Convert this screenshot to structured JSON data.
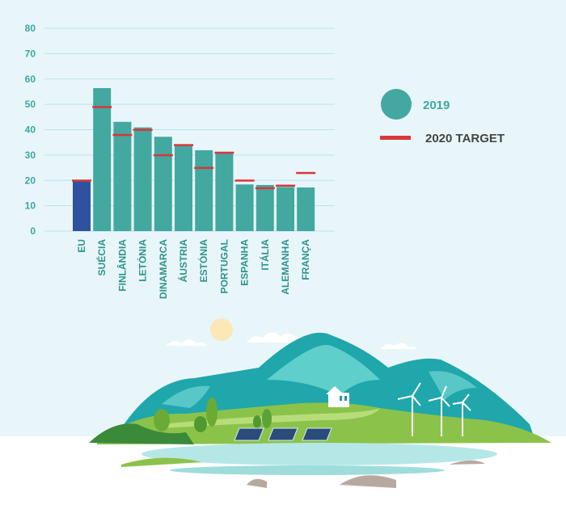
{
  "colors": {
    "bar": "#43a89f",
    "eu_bar": "#2f529e",
    "target": "#d9363a",
    "grid": "#b9e2ee",
    "tick_text": "#3ea79c",
    "legend_2019_text": "#3fa7a0",
    "legend_target_text": "#444444"
  },
  "legend": {
    "series_2019": "2019",
    "series_target": "2020 TARGET"
  },
  "chart_data": {
    "type": "bar",
    "title": "",
    "xlabel": "",
    "ylabel": "",
    "ylim": [
      0,
      80
    ],
    "yticks": [
      "0",
      "10",
      "20",
      "30",
      "40",
      "50",
      "60",
      "70",
      "80"
    ],
    "grid": true,
    "legend_position": "right",
    "categories": [
      "EU",
      "SUÉCIA",
      "FINLÂNDIA",
      "LETÓNIA",
      "DINAMARCA",
      "ÁUSTRIA",
      "ESTÓNIA",
      "PORTUGAL",
      "ESPANHA",
      "ITÁLIA",
      "ALEMANHA",
      "FRANÇA"
    ],
    "series": [
      {
        "name": "2019",
        "values": [
          19.7,
          56.4,
          43.1,
          40.9,
          37.2,
          33.6,
          31.9,
          30.6,
          18.4,
          18.2,
          17.4,
          17.2
        ]
      },
      {
        "name": "2020 TARGET",
        "values": [
          20,
          49,
          38,
          40,
          30,
          34,
          25,
          31,
          20,
          17,
          18,
          23
        ]
      }
    ]
  }
}
